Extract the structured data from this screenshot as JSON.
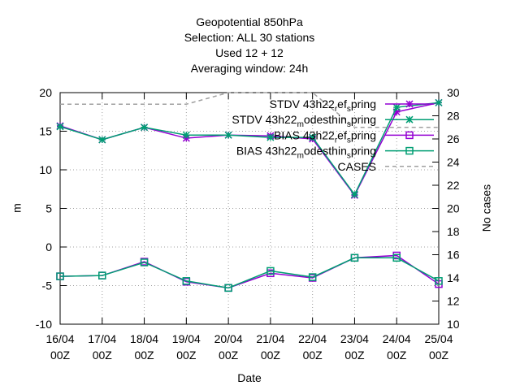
{
  "chart_data": {
    "type": "line",
    "title_lines": [
      "Geopotential 850hPa",
      "Selection: ALL      30 stations",
      "Used  12  + 12",
      "Averaging window: 24h"
    ],
    "xlabel": "Date",
    "ylabel": "m",
    "y2label": "No cases",
    "x_tick_dates": [
      "16/04",
      "17/04",
      "18/04",
      "19/04",
      "20/04",
      "21/04",
      "22/04",
      "23/04",
      "24/04",
      "25/04"
    ],
    "x_tick_hour": "00Z",
    "ylim": [
      -10,
      20
    ],
    "yticks": [
      -10,
      -5,
      0,
      5,
      10,
      15,
      20
    ],
    "y2lim": [
      10,
      30
    ],
    "y2ticks": [
      10,
      12,
      14,
      16,
      18,
      20,
      22,
      24,
      26,
      28,
      30
    ],
    "grid": true,
    "legend_position": "top-right",
    "series": [
      {
        "name": "STDV 43h22_ref_spring",
        "legend": {
          "a": "STDV 43h22",
          "sub1": "r",
          "b": "ef",
          "sub2": "s",
          "c": "pring"
        },
        "color": "#9400d3",
        "marker": "star",
        "axis": "y",
        "values": [
          15.7,
          13.9,
          15.5,
          14.1,
          14.5,
          14.4,
          14.0,
          6.7,
          17.5,
          18.7
        ]
      },
      {
        "name": "STDV 43h22_modesthin_spring",
        "legend": {
          "a": "STDV 43h22",
          "sub1": "m",
          "b": "odesthin",
          "sub2": "s",
          "c": "pring"
        },
        "color": "#009e73",
        "marker": "star",
        "axis": "y",
        "values": [
          15.6,
          13.9,
          15.5,
          14.5,
          14.5,
          14.2,
          14.2,
          6.8,
          18.1,
          18.7
        ]
      },
      {
        "name": "BIAS 43h22_ref_spring",
        "legend": {
          "a": "BIAS 43h22",
          "sub1": "r",
          "b": "ef",
          "sub2": "s",
          "c": "pring"
        },
        "color": "#9400d3",
        "marker": "square",
        "axis": "y",
        "values": [
          -3.8,
          -3.7,
          -1.9,
          -4.5,
          -5.3,
          -3.4,
          -4.0,
          -1.4,
          -1.1,
          -4.8
        ]
      },
      {
        "name": "BIAS 43h22_modesthin_spring",
        "legend": {
          "a": "BIAS 43h22",
          "sub1": "m",
          "b": "odesthin",
          "sub2": "s",
          "c": "pring"
        },
        "color": "#009e73",
        "marker": "square",
        "axis": "y",
        "values": [
          -3.8,
          -3.7,
          -2.0,
          -4.4,
          -5.3,
          -3.1,
          -3.9,
          -1.4,
          -1.4,
          -4.4
        ]
      },
      {
        "name": "CASES",
        "legend": {
          "a": "CASES",
          "sub1": "",
          "b": "",
          "sub2": "",
          "c": ""
        },
        "color": "#a0a0a0",
        "marker": "none",
        "dashed": true,
        "axis": "y2",
        "values": [
          29,
          29,
          29,
          29,
          30,
          30,
          30,
          27,
          27,
          27
        ]
      }
    ]
  }
}
